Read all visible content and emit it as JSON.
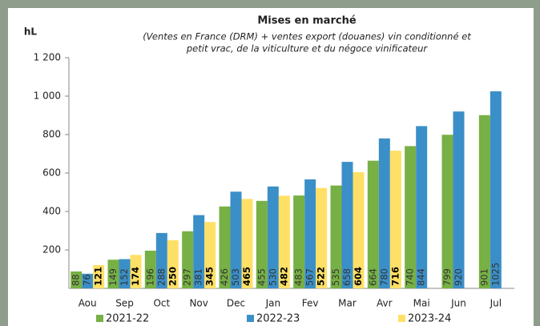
{
  "chart_data": {
    "type": "bar",
    "title": "Mises en marché",
    "subtitle": [
      "(Ventes en France (DRM) + ventes export (douanes) vin conditionné et",
      "petit vrac, de la viticulture et du négoce vinificateur"
    ],
    "y_label": "hL",
    "categories": [
      "Aou",
      "Sep",
      "Oct",
      "Nov",
      "Dec",
      "Jan",
      "Fev",
      "Mar",
      "Avr",
      "Mai",
      "Jun",
      "Jul"
    ],
    "series": [
      {
        "name": "2021-22",
        "color": "#77b044",
        "values": [
          88,
          149,
          196,
          297,
          426,
          455,
          483,
          535,
          664,
          740,
          799,
          901
        ]
      },
      {
        "name": "2022-23",
        "color": "#3b8fc8",
        "values": [
          76,
          152,
          288,
          381,
          503,
          530,
          567,
          658,
          780,
          844,
          920,
          1025
        ]
      },
      {
        "name": "2023-24",
        "color": "#ffe066",
        "values": [
          121,
          174,
          250,
          345,
          465,
          482,
          522,
          604,
          716,
          null,
          null,
          null
        ]
      }
    ],
    "bold_labels_series": "2023-24",
    "ylim": [
      0,
      1200
    ],
    "yticks": [
      200,
      400,
      600,
      800,
      {
        "value": 1000,
        "label": "1 000"
      },
      {
        "value": 1200,
        "label": "1 200"
      }
    ],
    "grid": false
  }
}
